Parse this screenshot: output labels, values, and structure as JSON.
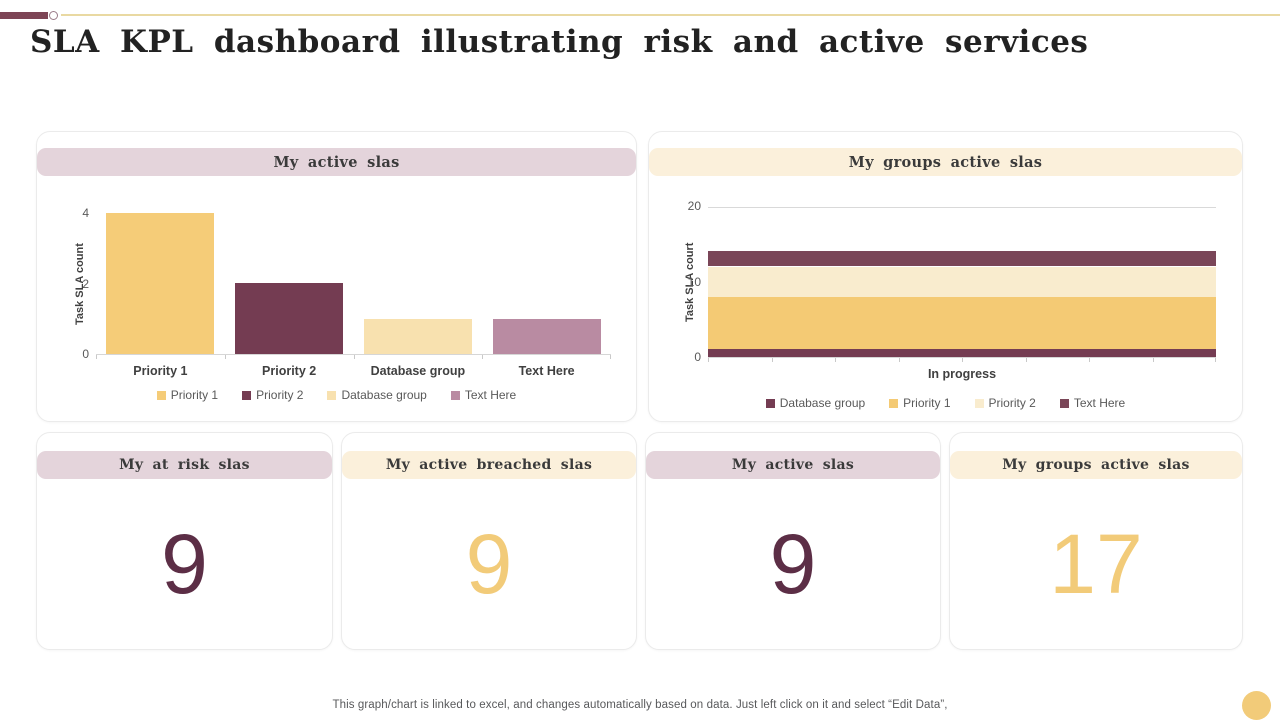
{
  "title": "SLA KPL dashboard illustrating risk and active services",
  "footer": "This graph/chart is linked to excel,  and changes automatically based on data. Just left click on it and select “Edit Data”,",
  "colors": {
    "accent_bar": "#7d4455",
    "accent_line": "#e9d9a2",
    "header_pink": "#e4d4db",
    "header_cream": "#fbf0db",
    "gold": "#f5cc78",
    "maroon": "#743c52",
    "cream": "#f8e1af",
    "cream_light": "#f9ecce",
    "mauve": "#b98ba2",
    "kpi_maroon": "#5c2e46",
    "kpi_gold": "#f2cb79"
  },
  "chart_data": [
    {
      "type": "bar",
      "title": "My active  slas",
      "ylabel": "Task SLA count",
      "categories": [
        "Priority 1",
        "Priority 2",
        "Database group",
        "Text Here"
      ],
      "values": [
        4,
        2,
        1,
        1
      ],
      "bar_colors": [
        "#f5cc78",
        "#743c52",
        "#f8e1af",
        "#b98ba2"
      ],
      "ylim": [
        0,
        4
      ],
      "yticks": [
        0,
        2,
        4
      ],
      "grid": false,
      "legend": [
        "Priority 1",
        "Priority 2",
        "Database group",
        "Text Here"
      ],
      "legend_position": "bottom"
    },
    {
      "type": "stacked-bar",
      "title": "My groups  active  slas",
      "ylabel": "Task SLA court",
      "categories": [
        "In progress"
      ],
      "series": [
        {
          "name": "Database group",
          "values": [
            1
          ],
          "color": "#743c52"
        },
        {
          "name": "Priority 1",
          "values": [
            7
          ],
          "color": "#f4ca74"
        },
        {
          "name": "Priority 2",
          "values": [
            4
          ],
          "color": "#f9ecce"
        },
        {
          "name": "Text Here",
          "values": [
            2
          ],
          "color": "#7a4658"
        }
      ],
      "ylim": [
        0,
        20
      ],
      "yticks": [
        0,
        10,
        20
      ],
      "grid": "top-only",
      "legend_position": "bottom"
    }
  ],
  "kpis": [
    {
      "title": "My at  risk  slas",
      "value": "9",
      "header_style": "pink",
      "value_color": "#5c2e46"
    },
    {
      "title": "My active  breached  slas",
      "value": "9",
      "header_style": "cream",
      "value_color": "#f2cb79"
    },
    {
      "title": "My active  slas",
      "value": "9",
      "header_style": "pink",
      "value_color": "#5c2e46"
    },
    {
      "title": "My groups  active  slas",
      "value": "17",
      "header_style": "cream",
      "value_color": "#f2cb79"
    }
  ]
}
